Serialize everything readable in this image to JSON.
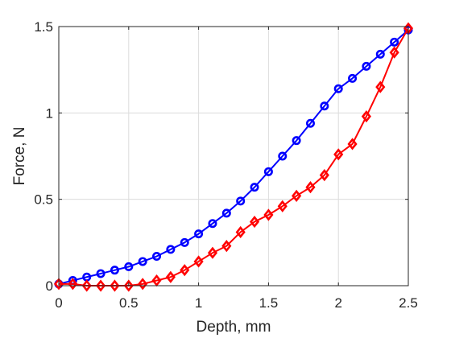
{
  "chart_data": {
    "type": "line",
    "title": "",
    "xlabel": "Depth, mm",
    "ylabel": "Force, N",
    "xlim": [
      0,
      2.5
    ],
    "ylim": [
      0,
      1.5
    ],
    "xticks": [
      0,
      0.5,
      1,
      1.5,
      2,
      2.5
    ],
    "xtick_labels": [
      "0",
      "0.5",
      "1",
      "1.5",
      "2",
      "2.5"
    ],
    "yticks": [
      0,
      0.5,
      1,
      1.5
    ],
    "ytick_labels": [
      "0",
      "0.5",
      "1",
      "1.5"
    ],
    "grid": true,
    "legend": "none",
    "series": [
      {
        "color": "#0000ff",
        "marker": "circle",
        "x": [
          0,
          0.1,
          0.2,
          0.3,
          0.4,
          0.5,
          0.6,
          0.7,
          0.8,
          0.9,
          1.0,
          1.1,
          1.2,
          1.3,
          1.4,
          1.5,
          1.6,
          1.7,
          1.8,
          1.9,
          2.0,
          2.1,
          2.2,
          2.3,
          2.4,
          2.5
        ],
        "y": [
          0.01,
          0.03,
          0.05,
          0.07,
          0.09,
          0.11,
          0.14,
          0.17,
          0.21,
          0.25,
          0.3,
          0.36,
          0.42,
          0.49,
          0.57,
          0.66,
          0.75,
          0.84,
          0.94,
          1.04,
          1.14,
          1.2,
          1.27,
          1.34,
          1.41,
          1.48
        ]
      },
      {
        "color": "#ff0000",
        "marker": "diamond",
        "x": [
          0,
          0.1,
          0.2,
          0.3,
          0.4,
          0.5,
          0.6,
          0.7,
          0.8,
          0.9,
          1.0,
          1.1,
          1.2,
          1.3,
          1.4,
          1.5,
          1.6,
          1.7,
          1.8,
          1.9,
          2.0,
          2.1,
          2.2,
          2.3,
          2.4,
          2.5
        ],
        "y": [
          0.01,
          0.01,
          0.0,
          0.0,
          0.0,
          0.0,
          0.01,
          0.03,
          0.05,
          0.09,
          0.14,
          0.19,
          0.23,
          0.31,
          0.37,
          0.41,
          0.46,
          0.52,
          0.57,
          0.64,
          0.76,
          0.82,
          0.98,
          1.15,
          1.35,
          1.49
        ]
      }
    ]
  }
}
